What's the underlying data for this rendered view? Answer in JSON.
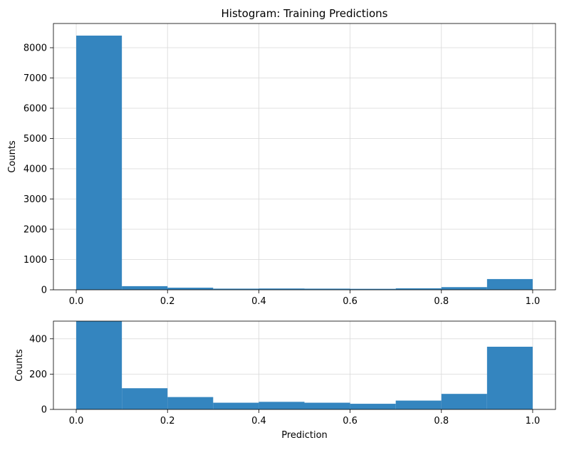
{
  "chart_data": [
    {
      "type": "bar",
      "title": "Histogram: Training Predictions",
      "xlabel": "",
      "ylabel": "Counts",
      "bin_edges": [
        0.0,
        0.1,
        0.2,
        0.3,
        0.4,
        0.5,
        0.6,
        0.7,
        0.8,
        0.9,
        1.0
      ],
      "values": [
        8400,
        120,
        70,
        38,
        43,
        38,
        32,
        50,
        88,
        355
      ],
      "xlim": [
        -0.05,
        1.05
      ],
      "ylim": [
        0,
        8800
      ],
      "xticks": [
        0.0,
        0.2,
        0.4,
        0.6,
        0.8,
        1.0
      ],
      "xtick_labels": [
        "0.0",
        "0.2",
        "0.4",
        "0.6",
        "0.8",
        "1.0"
      ],
      "yticks": [
        0,
        1000,
        2000,
        3000,
        4000,
        5000,
        6000,
        7000,
        8000
      ],
      "ytick_labels": [
        "0",
        "1000",
        "2000",
        "3000",
        "4000",
        "5000",
        "6000",
        "7000",
        "8000"
      ],
      "grid": true,
      "color": "#3485bf"
    },
    {
      "type": "bar",
      "title": "",
      "xlabel": "Prediction",
      "ylabel": "Counts",
      "bin_edges": [
        0.0,
        0.1,
        0.2,
        0.3,
        0.4,
        0.5,
        0.6,
        0.7,
        0.8,
        0.9,
        1.0
      ],
      "values": [
        8400,
        120,
        70,
        38,
        43,
        38,
        32,
        50,
        88,
        355
      ],
      "xlim": [
        -0.05,
        1.05
      ],
      "ylim": [
        0,
        500
      ],
      "xticks": [
        0.0,
        0.2,
        0.4,
        0.6,
        0.8,
        1.0
      ],
      "xtick_labels": [
        "0.0",
        "0.2",
        "0.4",
        "0.6",
        "0.8",
        "1.0"
      ],
      "yticks": [
        0,
        200,
        400
      ],
      "ytick_labels": [
        "0",
        "200",
        "400"
      ],
      "grid": true,
      "color": "#3485bf"
    }
  ]
}
